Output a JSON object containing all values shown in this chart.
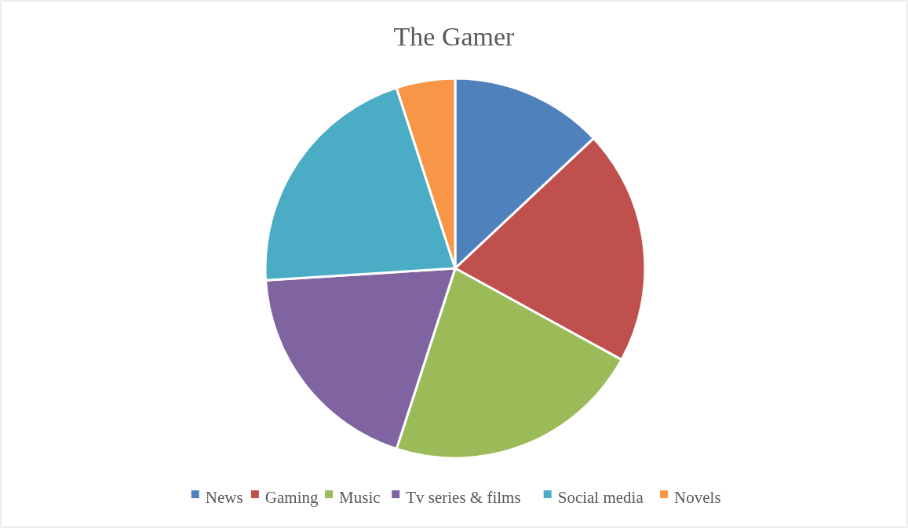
{
  "chart_data": {
    "type": "pie",
    "title": "The Gamer",
    "categories": [
      "News",
      "Gaming",
      "Music",
      "Tv series & films",
      "Social media",
      "Novels"
    ],
    "values": [
      13,
      20,
      22,
      19,
      21,
      5
    ],
    "colors": [
      "#4f81bd",
      "#c0504d",
      "#9bbb59",
      "#8064a2",
      "#4bacc6",
      "#f79646"
    ],
    "legend": "bottom"
  }
}
